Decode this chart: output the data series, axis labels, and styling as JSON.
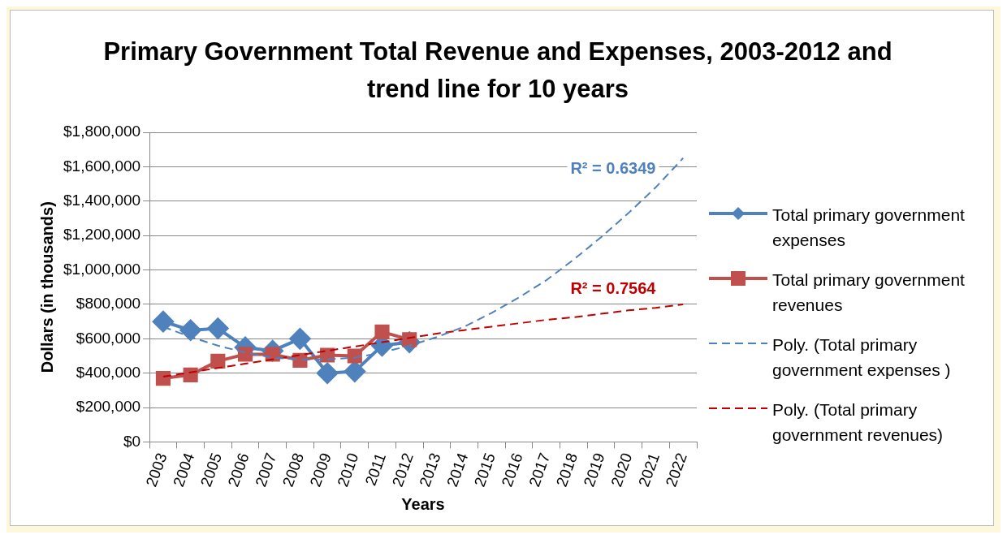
{
  "chart_data": {
    "type": "line",
    "title": "Primary Government Total Revenue and Expenses, 2003-2012 and trend line for 10 years",
    "xlabel": "Years",
    "ylabel": "Dollars (in thousands)",
    "categories": [
      "2003",
      "2004",
      "2005",
      "2006",
      "2007",
      "2008",
      "2009",
      "2010",
      "2011",
      "2012",
      "2013",
      "2014",
      "2015",
      "2016",
      "2017",
      "2018",
      "2019",
      "2020",
      "2021",
      "2022"
    ],
    "series": [
      {
        "name": "Total primary government expenses",
        "color": "#4f81bd",
        "marker": "diamond",
        "line_style": "solid",
        "values": [
          700000,
          650000,
          660000,
          550000,
          530000,
          600000,
          400000,
          410000,
          560000,
          580000,
          null,
          null,
          null,
          null,
          null,
          null,
          null,
          null,
          null,
          null
        ]
      },
      {
        "name": "Total primary government revenues",
        "color": "#c0504d",
        "marker": "square",
        "line_style": "solid",
        "values": [
          370000,
          390000,
          470000,
          510000,
          510000,
          475000,
          505000,
          500000,
          640000,
          595000,
          null,
          null,
          null,
          null,
          null,
          null,
          null,
          null,
          null,
          null
        ]
      },
      {
        "name": "Poly. (Total primary government expenses )",
        "color": "#4f81bd",
        "marker": "none",
        "line_style": "dashed",
        "values": [
          670000,
          610000,
          560000,
          520000,
          490000,
          480000,
          480000,
          490000,
          520000,
          560000,
          610000,
          670000,
          750000,
          840000,
          940000,
          1060000,
          1190000,
          1330000,
          1480000,
          1650000
        ]
      },
      {
        "name": "Poly. (Total primary government revenues)",
        "color": "#c00000",
        "marker": "none",
        "line_style": "dashed",
        "values": [
          380000,
          405000,
          430000,
          455000,
          480000,
          505000,
          530000,
          555000,
          580000,
          605000,
          630000,
          650000,
          670000,
          690000,
          710000,
          725000,
          745000,
          765000,
          780000,
          800000
        ]
      }
    ],
    "ylim": [
      0,
      1800000
    ],
    "yticks": [
      {
        "value": 0,
        "label": "$0"
      },
      {
        "value": 200000,
        "label": "$200,000"
      },
      {
        "value": 400000,
        "label": "$400,000"
      },
      {
        "value": 600000,
        "label": "$600,000"
      },
      {
        "value": 800000,
        "label": "$800,000"
      },
      {
        "value": 1000000,
        "label": "$1,000,000"
      },
      {
        "value": 1200000,
        "label": "$1,200,000"
      },
      {
        "value": 1400000,
        "label": "$1,400,000"
      },
      {
        "value": 1600000,
        "label": "$1,600,000"
      },
      {
        "value": 1800000,
        "label": "$1,800,000"
      }
    ],
    "grid": "y",
    "legend": "right",
    "annotations": [
      "R² = 0.6349",
      "R² = 0.7564"
    ]
  }
}
